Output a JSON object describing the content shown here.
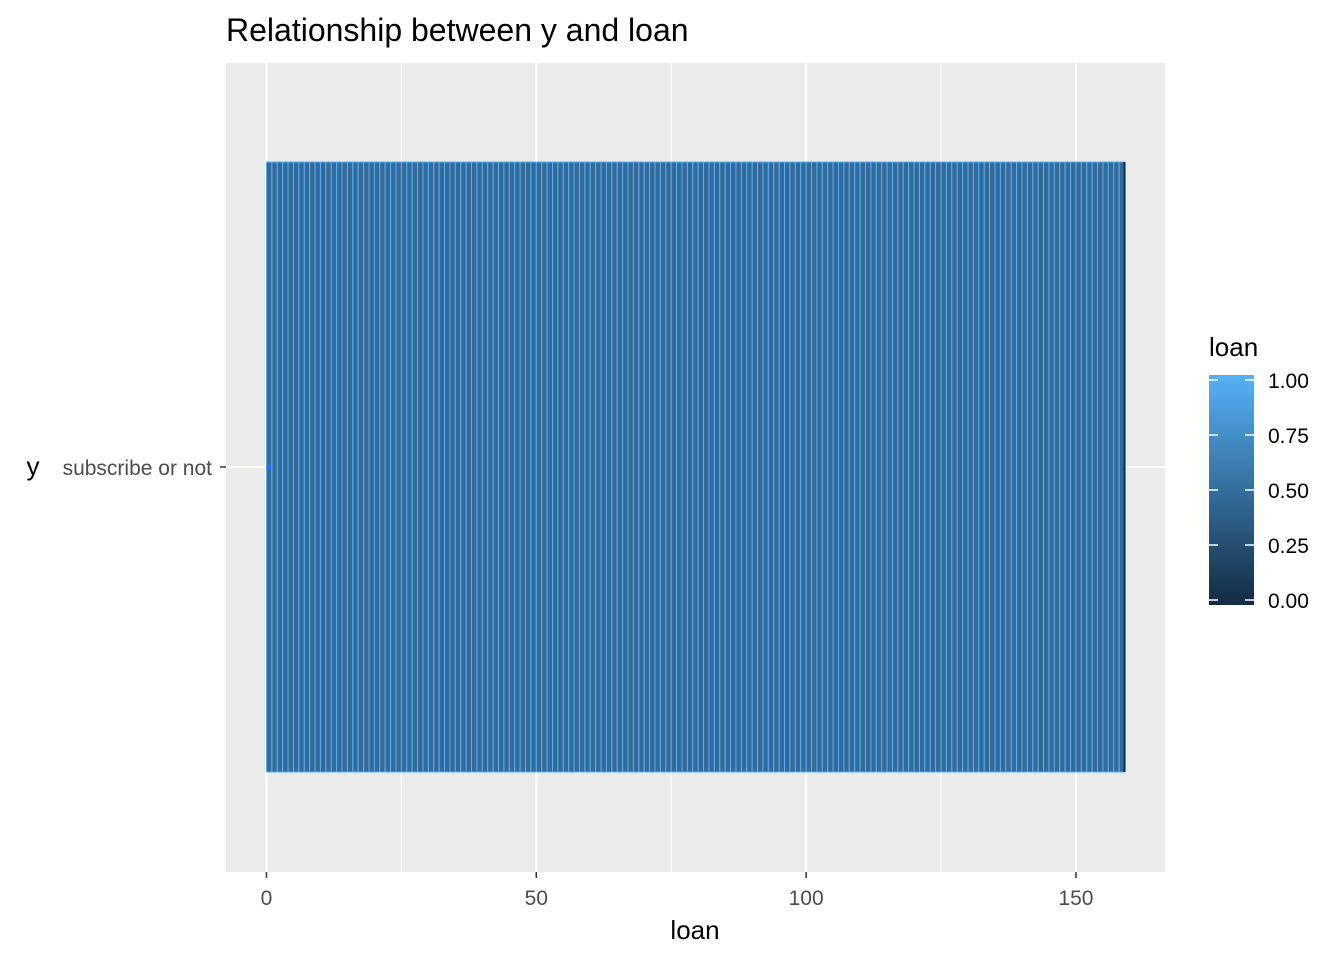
{
  "chart_data": {
    "type": "bar",
    "orientation": "horizontal",
    "title": "Relationship between y and loan",
    "xlabel": "loan",
    "ylabel": "y",
    "y_categories": [
      "subscribe or not"
    ],
    "x_ticks": [
      0,
      50,
      100,
      150
    ],
    "x_tick_labels": [
      "0",
      "50",
      "100",
      "150"
    ],
    "xlim": [
      -7.5,
      166.5
    ],
    "bar_segments": 159,
    "bar_total": 159,
    "bar_category": "subscribe or not",
    "grid": true,
    "legend": {
      "title": "loan",
      "placement": "right",
      "type": "colorbar",
      "ticks": [
        0.0,
        0.25,
        0.5,
        0.75,
        1.0
      ],
      "tick_labels": [
        "0.00",
        "0.25",
        "0.50",
        "0.75",
        "1.00"
      ],
      "low_color": "#132B43",
      "high_color": "#56B1F7"
    },
    "colors": {
      "panel_background": "#EBEBEB",
      "grid": "#FFFFFF",
      "bar_fill": "#336A98",
      "bar_outline": "#56B1F7",
      "point": "#3366FF"
    }
  }
}
